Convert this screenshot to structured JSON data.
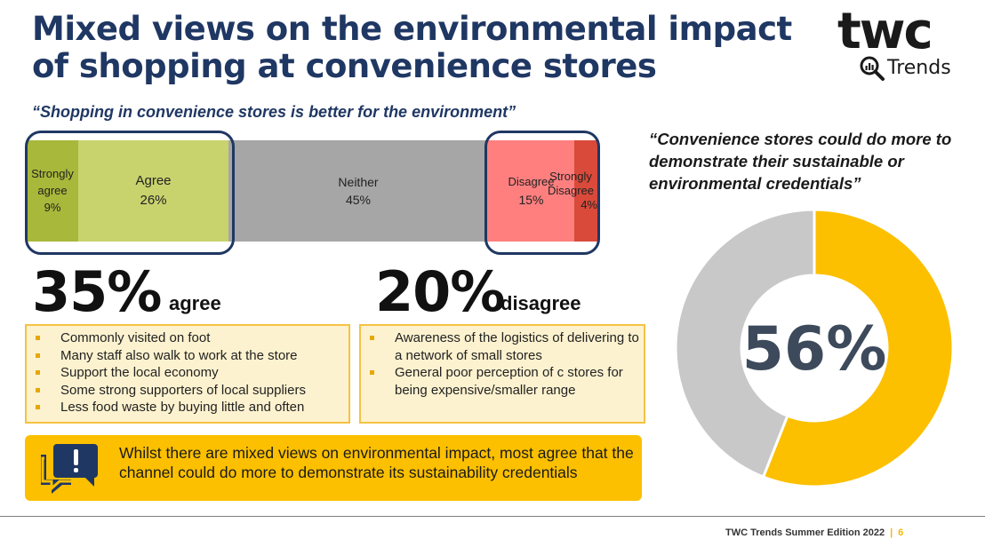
{
  "header": {
    "title": "Mixed views on the environmental impact of shopping at convenience stores",
    "logo_main": "twc",
    "logo_sub": "Trends"
  },
  "left": {
    "quote": "“Shopping in convenience stores is better for the environment”",
    "agree_pct": "35%",
    "agree_word": "agree",
    "disagree_pct": "20%",
    "disagree_word": "disagree",
    "agree_bullets": [
      "Commonly visited on foot",
      "Many staff also walk to work at the store",
      "Support the local economy",
      "Some strong supporters of local suppliers",
      "Less food waste by buying little and often"
    ],
    "disagree_bullets": [
      "Awareness of the logistics of delivering to a network of small stores",
      "General poor perception of c stores for being expensive/smaller range"
    ],
    "callout": "Whilst there are mixed views on environmental impact, most agree that the channel could do more to demonstrate its sustainability credentials"
  },
  "right": {
    "quote": "“Convenience stores could do more to demonstrate their sustainable or environmental credentials”",
    "center_label": "56%"
  },
  "footer": {
    "text": "TWC Trends Summer Edition 2022",
    "separator": "|",
    "page": "6"
  },
  "chart_data": [
    {
      "type": "bar",
      "orientation": "horizontal-stacked",
      "categories": [
        "Strongly agree",
        "Agree",
        "Neither",
        "Disagree",
        "Strongly Disagree"
      ],
      "values": [
        9,
        26,
        45,
        15,
        4
      ],
      "labels": [
        {
          "name": "Strongly agree",
          "value": "9%"
        },
        {
          "name": "Agree",
          "value": "26%"
        },
        {
          "name": "Neither",
          "value": "45%"
        },
        {
          "name": "Disagree",
          "value": "15%"
        },
        {
          "name": "Strongly Disagree",
          "value": "4%"
        }
      ],
      "colors": [
        "#a8b83a",
        "#c8d36e",
        "#a6a6a6",
        "#ff7f7f",
        "#d94a3a"
      ]
    },
    {
      "type": "pie",
      "style": "donut",
      "values": [
        56,
        44
      ],
      "colors": [
        "#fcc000",
        "#c8c8c8"
      ],
      "center_label": "56%"
    }
  ],
  "colors": {
    "navy": "#1f3763",
    "gold": "#fcc000",
    "panel_fill": "#fdf2cf",
    "panel_border": "#f5c244"
  }
}
